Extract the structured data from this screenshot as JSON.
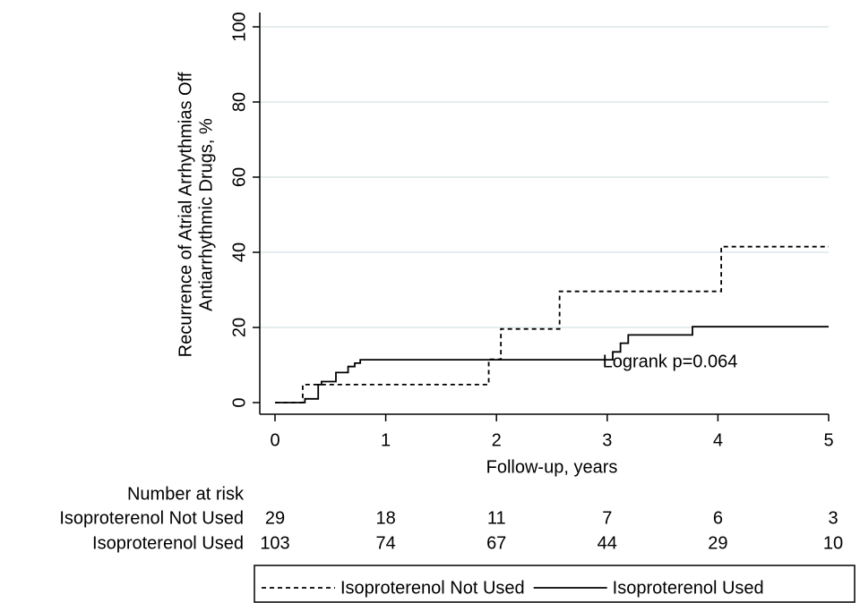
{
  "chart_data": {
    "type": "step",
    "ylabel": [
      "Recurrence of Atrial Arrhythmias Off",
      "Antiarrhythmic Drugs, %"
    ],
    "xlabel": "Follow-up, years",
    "annotation": "Logrank p=0.064",
    "xlim": [
      0,
      5
    ],
    "xticks": [
      0,
      1,
      2,
      3,
      4,
      5
    ],
    "ylim": [
      0,
      100
    ],
    "yticks": [
      0,
      20,
      40,
      60,
      80,
      100
    ],
    "grid": true,
    "series": [
      {
        "name": "Isoproterenol Not Used",
        "color": "#000000",
        "dash": true,
        "x": [
          0,
          0.25,
          1.93,
          2.04,
          2.57,
          4.03,
          5
        ],
        "values": [
          0,
          4.8,
          11.5,
          19.6,
          29.6,
          41.5,
          41.5
        ]
      },
      {
        "name": "Isoproterenol Used",
        "color": "#000000",
        "dash": false,
        "x": [
          0,
          0.27,
          0.39,
          0.42,
          0.55,
          0.66,
          0.72,
          0.77,
          3.05,
          3.12,
          3.19,
          3.77,
          5
        ],
        "values": [
          0,
          1,
          4.8,
          5.6,
          8,
          9.6,
          10.5,
          11.4,
          13.5,
          15.8,
          18,
          20.2,
          20.2
        ]
      }
    ],
    "number_at_risk": {
      "title": "Number at risk",
      "rows": [
        {
          "name": "Isoproterenol Not Used",
          "values": [
            29,
            18,
            11,
            7,
            6,
            3
          ]
        },
        {
          "name": "Isoproterenol Used",
          "values": [
            103,
            74,
            67,
            44,
            29,
            10
          ]
        }
      ]
    }
  }
}
